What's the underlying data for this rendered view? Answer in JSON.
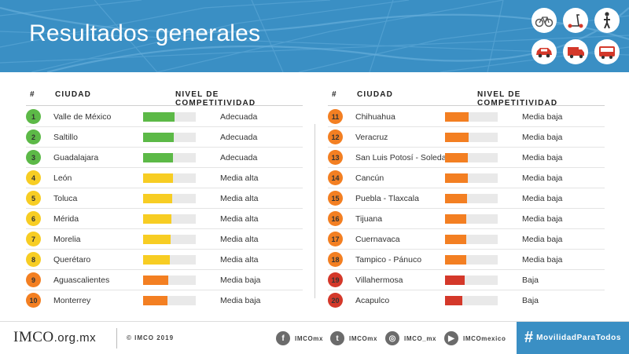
{
  "header": {
    "title": "Resultados generales"
  },
  "columns": {
    "number": "#",
    "city": "CIUDAD",
    "level": "NIVEL  DE  COMPETITIVIDAD"
  },
  "colors": {
    "adecuada": "#5cb947",
    "media_alta": "#f7cd23",
    "media_baja": "#f37f22",
    "baja": "#d4382a",
    "track": "#e9e9e9",
    "accent": "#3a8fc4"
  },
  "left_rows": [
    {
      "rank": "1",
      "city": "Valle de México",
      "level": "Adecuada",
      "score": 0.59,
      "color": "#5cb947"
    },
    {
      "rank": "2",
      "city": "Saltillo",
      "level": "Adecuada",
      "score": 0.58,
      "color": "#5cb947"
    },
    {
      "rank": "3",
      "city": "Guadalajara",
      "level": "Adecuada",
      "score": 0.56,
      "color": "#5cb947"
    },
    {
      "rank": "4",
      "city": "León",
      "level": "Media alta",
      "score": 0.56,
      "color": "#f7cd23"
    },
    {
      "rank": "5",
      "city": "Toluca",
      "level": "Media alta",
      "score": 0.55,
      "color": "#f7cd23"
    },
    {
      "rank": "6",
      "city": "Mérida",
      "level": "Media alta",
      "score": 0.53,
      "color": "#f7cd23"
    },
    {
      "rank": "7",
      "city": "Morelia",
      "level": "Media alta",
      "score": 0.52,
      "color": "#f7cd23"
    },
    {
      "rank": "8",
      "city": "Querétaro",
      "level": "Media alta",
      "score": 0.51,
      "color": "#f7cd23"
    },
    {
      "rank": "9",
      "city": "Aguascalientes",
      "level": "Media baja",
      "score": 0.48,
      "color": "#f37f22"
    },
    {
      "rank": "10",
      "city": "Monterrey",
      "level": "Media baja",
      "score": 0.47,
      "color": "#f37f22"
    }
  ],
  "right_rows": [
    {
      "rank": "11",
      "city": "Chihuahua",
      "level": "Media baja",
      "score": 0.45,
      "color": "#f37f22"
    },
    {
      "rank": "12",
      "city": "Veracruz",
      "level": "Media baja",
      "score": 0.45,
      "color": "#f37f22"
    },
    {
      "rank": "13",
      "city": "San Luis Potosí - Soledad",
      "level": "Media baja",
      "score": 0.43,
      "color": "#f37f22"
    },
    {
      "rank": "14",
      "city": "Cancún",
      "level": "Media baja",
      "score": 0.43,
      "color": "#f37f22"
    },
    {
      "rank": "15",
      "city": "Puebla - Tlaxcala",
      "level": "Media baja",
      "score": 0.42,
      "color": "#f37f22"
    },
    {
      "rank": "16",
      "city": "Tijuana",
      "level": "Media baja",
      "score": 0.41,
      "color": "#f37f22"
    },
    {
      "rank": "17",
      "city": "Cuernavaca",
      "level": "Media baja",
      "score": 0.41,
      "color": "#f37f22"
    },
    {
      "rank": "18",
      "city": "Tampico - Pánuco",
      "level": "Media baja",
      "score": 0.4,
      "color": "#f37f22"
    },
    {
      "rank": "19",
      "city": "Villahermosa",
      "level": "Baja",
      "score": 0.38,
      "color": "#d4382a"
    },
    {
      "rank": "20",
      "city": "Acapulco",
      "level": "Baja",
      "score": 0.33,
      "color": "#d4382a"
    }
  ],
  "transport_icons": [
    "bicycle-icon",
    "scooter-icon",
    "pedestrian-icon",
    "car-icon",
    "truck-icon",
    "bus-icon"
  ],
  "footer": {
    "logo": "IMCO",
    "logo_domain": ".org.mx",
    "copyright": "© IMCO 2019",
    "social": [
      {
        "icon": "facebook-icon",
        "glyph": "f",
        "handle": "IMCOmx"
      },
      {
        "icon": "twitter-icon",
        "glyph": "t",
        "handle": "IMCOmx"
      },
      {
        "icon": "instagram-icon",
        "glyph": "◎",
        "handle": "IMCO_mx"
      },
      {
        "icon": "youtube-icon",
        "glyph": "▶",
        "handle": "IMCOmexico"
      }
    ],
    "hashtag_symbol": "#",
    "hashtag": "MovilidadParaTodos"
  }
}
